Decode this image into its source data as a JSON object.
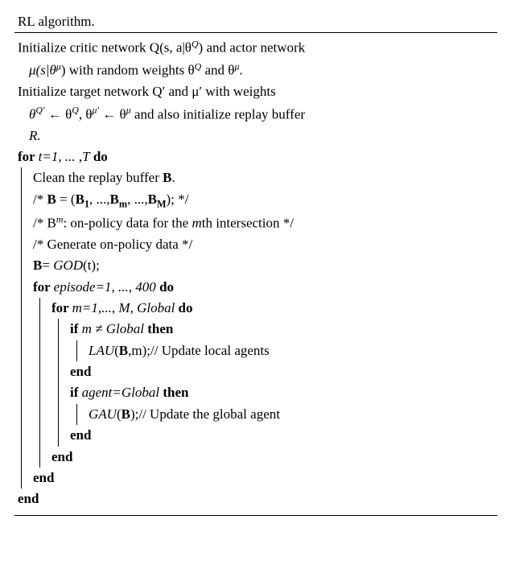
{
  "colors": {
    "text": "#000000",
    "bg": "#ffffff",
    "rule": "#000000"
  },
  "font": {
    "family": "Times New Roman",
    "size_pt": 13
  },
  "caption_tail": "RL algorithm.",
  "l1a": "Initialize critic network Q(s, a|θ",
  "l1a_sup": "Q",
  "l1b": ") and actor network",
  "l2a": "μ(s|θ",
  "l2a_sup": "μ",
  "l2b": ") with random weights θ",
  "l2b_sup": "Q",
  "l2c": " and θ",
  "l2c_sup": "μ",
  "l2d": ".",
  "l3": "Initialize target network Q′ and μ′ with weights",
  "l4a": "θ",
  "l4a_sup": "Q′",
  "l4b": " ← θ",
  "l4b_sup": "Q",
  "l4c": ", θ",
  "l4c_sup": "μ′",
  "l4d": " ← θ",
  "l4d_sup": "μ",
  "l4e": " and also initialize replay buffer",
  "l5": "R.",
  "for1": "for ",
  "for1_rng": "t=1, ... ,T",
  "do": " do",
  "c1a": "Clean the replay buffer ",
  "b": "B",
  "dot": ".",
  "c2a": "/* ",
  "c2b": " = (",
  "c2_b1": "B",
  "c2_b1s": "1",
  "c2c": ", ...,",
  "c2_bm": "B",
  "c2_bms": "m",
  "c2d": ", ...,",
  "c2_bM": "B",
  "c2_bMs": "M",
  "c2e": "); */",
  "c3a": "/* B",
  "c3a_sup": "m",
  "c3b": ": on-policy data for the ",
  "c3_m": "m",
  "c3c": "th intersection */",
  "c4": "/* Generate on-policy data */",
  "c5a": "= ",
  "c5b": "GOD",
  "c5c": "(t);",
  "for2": "for ",
  "for2_rng": "episode=1, ..., 400",
  "for3": "for ",
  "for3_rng": "m=1,..., M, Global",
  "if1": "if ",
  "if1_cond": "m ≠ Global",
  "then": " then",
  "lau_a": "LAU",
  "lau_b": "(",
  "lau_c": ",m);",
  "lau_cmt": "// Update local agents",
  "end": "end",
  "if2": "if ",
  "if2_cond": "agent=Global",
  "gau_a": "GAU",
  "gau_b": "(",
  "gau_c": ");",
  "gau_cmt": "// Update the global agent"
}
